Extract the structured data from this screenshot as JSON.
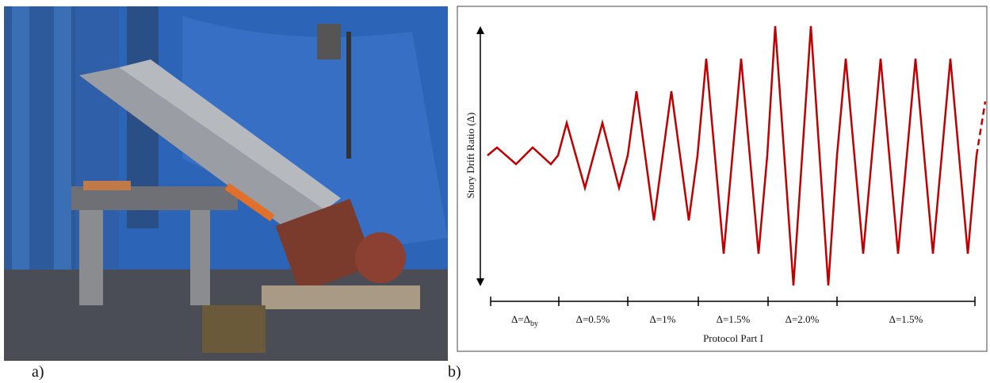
{
  "panel_a": {
    "label": "a)"
  },
  "panel_b": {
    "label": "b)",
    "y_axis_label": "Story Drift Ratio (Δ)",
    "segments": [
      {
        "text": "Δ=Δ",
        "subscript": "by"
      },
      {
        "text": "Δ=0.5%"
      },
      {
        "text": "Δ=1%"
      },
      {
        "text": "Δ=1.5%"
      },
      {
        "text": "Δ=2.0%"
      },
      {
        "text": "Δ=1.5%"
      }
    ],
    "x_axis_label": "Protocol Part I"
  }
}
